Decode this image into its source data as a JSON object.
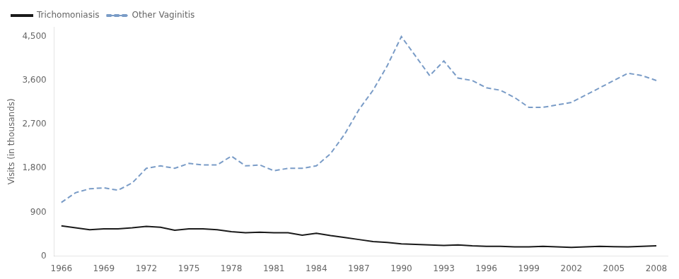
{
  "chart_data": {
    "type": "line",
    "ylabel": "Visits (in thousands)",
    "x": [
      1966,
      1967,
      1968,
      1969,
      1970,
      1971,
      1972,
      1973,
      1974,
      1975,
      1976,
      1977,
      1978,
      1979,
      1980,
      1981,
      1982,
      1983,
      1984,
      1985,
      1986,
      1987,
      1988,
      1989,
      1990,
      1991,
      1992,
      1993,
      1994,
      1995,
      1996,
      1997,
      1998,
      1999,
      2000,
      2001,
      2002,
      2003,
      2004,
      2005,
      2006,
      2007,
      2008
    ],
    "series": [
      {
        "name": "Other Vaginitis",
        "color": "#7a9cc7",
        "line_style": "dashed",
        "values": [
          1100,
          1300,
          1380,
          1400,
          1350,
          1500,
          1800,
          1850,
          1800,
          1900,
          1870,
          1870,
          2050,
          1850,
          1870,
          1750,
          1800,
          1800,
          1850,
          2100,
          2500,
          3000,
          3400,
          3900,
          4500,
          4100,
          3700,
          4000,
          3650,
          3600,
          3450,
          3400,
          3250,
          3050,
          3050,
          3100,
          3150,
          3300,
          3450,
          3600,
          3750,
          3700,
          3600
        ]
      },
      {
        "name": "Trichomoniasis",
        "color": "#1a1a1a",
        "line_style": "solid",
        "values": [
          620,
          580,
          540,
          560,
          560,
          580,
          610,
          590,
          530,
          560,
          560,
          540,
          500,
          480,
          490,
          480,
          480,
          430,
          470,
          420,
          380,
          340,
          300,
          280,
          250,
          240,
          230,
          220,
          230,
          210,
          200,
          200,
          190,
          190,
          200,
          190,
          180,
          190,
          200,
          195,
          190,
          200,
          210
        ]
      }
    ],
    "xlim": [
      1965.5,
      2008.8
    ],
    "xticks": [
      1966,
      1969,
      1972,
      1975,
      1978,
      1981,
      1984,
      1987,
      1990,
      1993,
      1996,
      1999,
      2002,
      2005,
      2008
    ],
    "ylim": [
      0,
      4700
    ],
    "yticks": [
      0,
      900,
      {
        "value": 1800,
        "label": "1,800"
      },
      {
        "value": 2700,
        "label": "2,700"
      },
      {
        "value": 3600,
        "label": "3,600"
      },
      {
        "value": 4500,
        "label": "4,500"
      }
    ],
    "grid": false,
    "legend": "upper left"
  }
}
